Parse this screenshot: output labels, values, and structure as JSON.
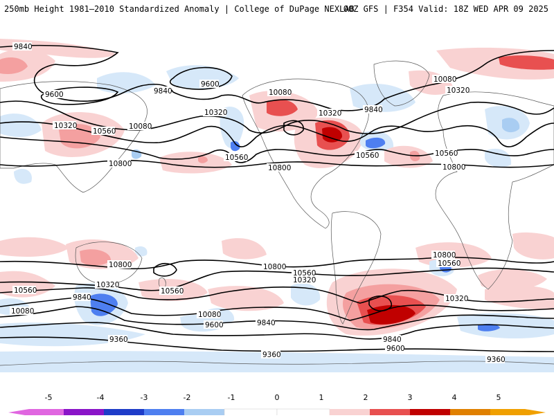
{
  "header": {
    "title": "250mb Height 1981–2010 Standardized Anomaly | College of DuPage NEXLAB",
    "run_info": "00Z GFS | F354 Valid: 18Z WED APR 09 2025"
  },
  "colors": {
    "neg5": "#e066e0",
    "neg4": "#8a14c8",
    "neg3": "#1e3cc8",
    "neg2": "#4e7ff0",
    "neg1": "#a9cdf2",
    "neg0": "#d6e8f9",
    "zero": "#ffffff",
    "pos1": "#f9d2d2",
    "pos2": "#f4a0a0",
    "pos3": "#e85050",
    "pos4": "#c00000",
    "pos5": "#f0a000",
    "contour": "#000000",
    "coast": "#555555"
  },
  "colorbar": {
    "labels": [
      "-5",
      "-4",
      "-3",
      "-2",
      "-1",
      "0",
      "1",
      "2",
      "3",
      "4",
      "5"
    ]
  },
  "contour_labels": [
    "9840",
    "9600",
    "9840",
    "9600",
    "10320",
    "10560",
    "10080",
    "10800",
    "10320",
    "10560",
    "10800",
    "10080",
    "10320",
    "9840",
    "10560",
    "10080",
    "10320",
    "10560",
    "10800",
    "10800",
    "10560",
    "10800",
    "10560",
    "10320",
    "10560",
    "10320",
    "9840",
    "10080",
    "9600",
    "9360",
    "10080",
    "9840",
    "9360",
    "9840",
    "9600",
    "9360",
    "10320",
    "10800",
    "10560"
  ]
}
